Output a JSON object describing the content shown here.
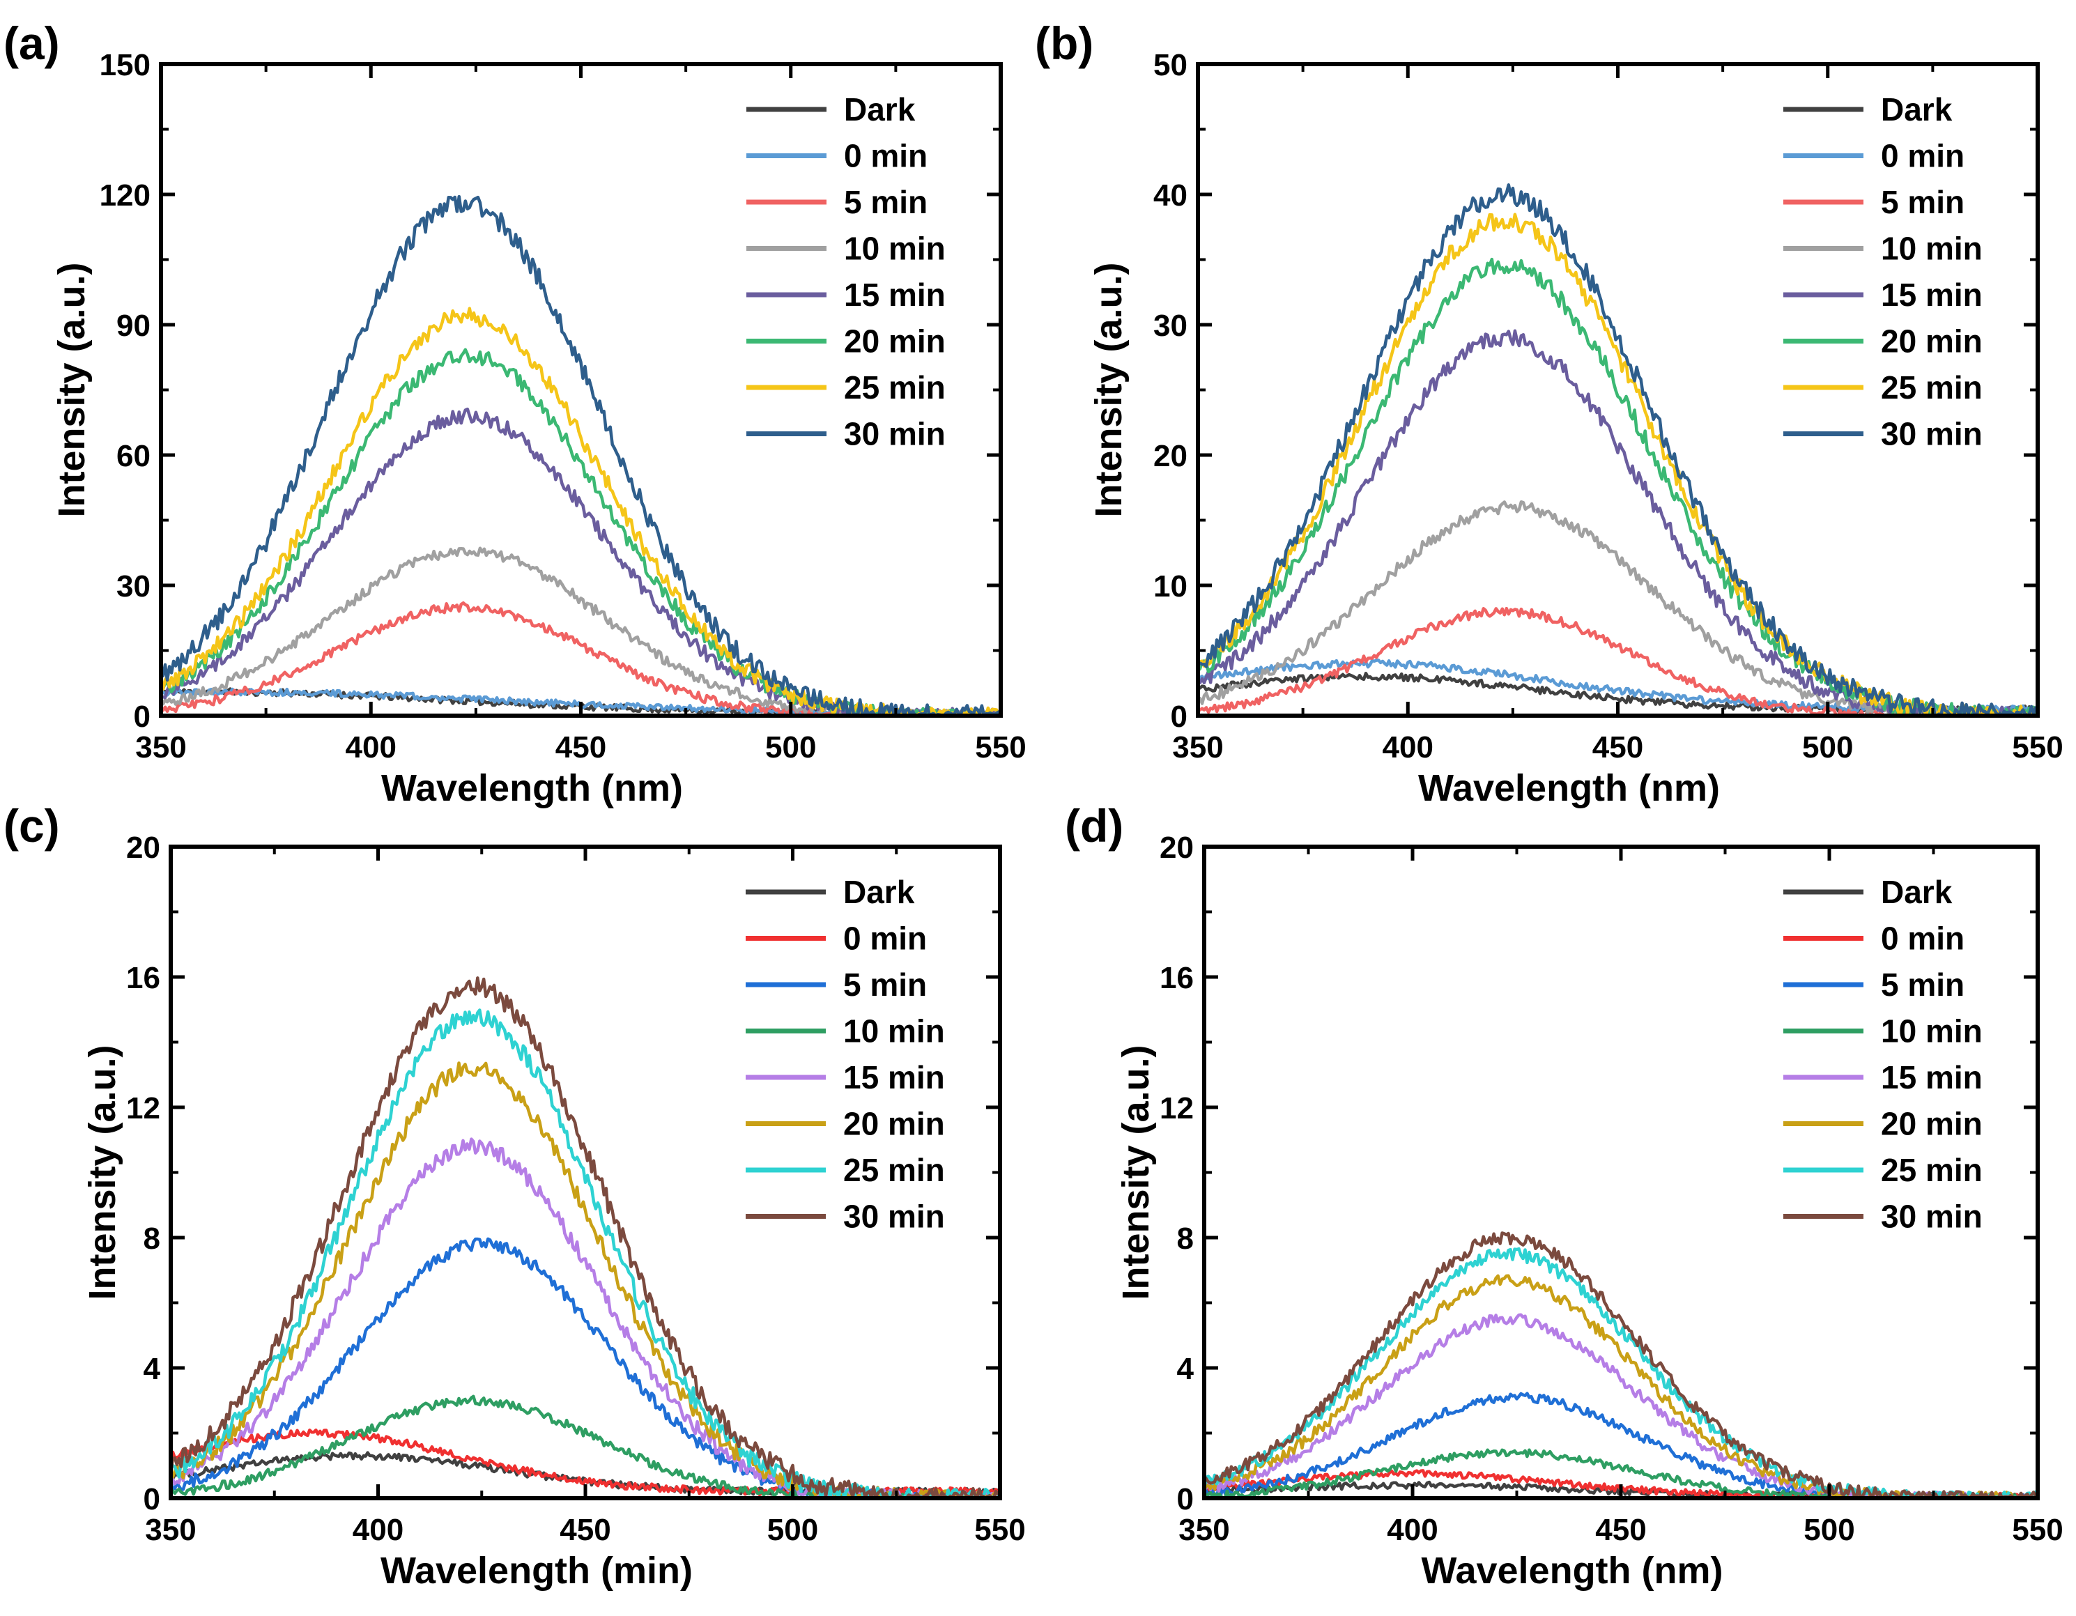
{
  "figure": {
    "description_title": ""
  },
  "chart_data": [
    {
      "panel": "(a)",
      "type": "line",
      "xlabel": "Wavelength (nm)",
      "ylabel": "Intensity (a.u.)",
      "xlim": [
        350,
        550
      ],
      "ylim": [
        0,
        150
      ],
      "xticks": [
        350,
        400,
        450,
        500,
        550
      ],
      "yticks": [
        0,
        30,
        60,
        90,
        120,
        150
      ],
      "legend": "top-right",
      "series": [
        {
          "name": "Dark",
          "color": "#404040",
          "peak_x": 360,
          "peak": 5,
          "width": 60,
          "baseline": 0.5
        },
        {
          "name": "0 min",
          "color": "#5b9bd5",
          "peak_x": 365,
          "peak": 5,
          "width": 65,
          "baseline": 0.5
        },
        {
          "name": "5 min",
          "color": "#f06262",
          "peak_x": 422,
          "peak": 25,
          "width": 30,
          "baseline": 0
        },
        {
          "name": "10 min",
          "color": "#a0a0a0",
          "peak_x": 423,
          "peak": 38,
          "width": 32,
          "baseline": 0
        },
        {
          "name": "15 min",
          "color": "#6a5d9e",
          "peak_x": 423,
          "peak": 69,
          "width": 32,
          "baseline": 0
        },
        {
          "name": "20 min",
          "color": "#3bb873",
          "peak_x": 423,
          "peak": 83,
          "width": 32,
          "baseline": 0
        },
        {
          "name": "25 min",
          "color": "#f5c518",
          "peak_x": 423,
          "peak": 92,
          "width": 32,
          "baseline": 0
        },
        {
          "name": "30 min",
          "color": "#2e5e8c",
          "peak_x": 422,
          "peak": 118,
          "width": 32,
          "baseline": 0
        }
      ]
    },
    {
      "panel": "(b)",
      "type": "line",
      "xlabel": "Wavelength (nm)",
      "ylabel": "Intensity (a.u.)",
      "xlim": [
        350,
        550
      ],
      "ylim": [
        0,
        50
      ],
      "xticks": [
        350,
        400,
        450,
        500,
        550
      ],
      "yticks": [
        0,
        10,
        20,
        30,
        40,
        50
      ],
      "legend": "top-right",
      "series": [
        {
          "name": "Dark",
          "color": "#404040",
          "peak_x": 390,
          "peak": 2.5,
          "width": 40,
          "baseline": 0.5
        },
        {
          "name": "0 min",
          "color": "#5b9bd5",
          "peak_x": 390,
          "peak": 3.5,
          "width": 45,
          "baseline": 0.5
        },
        {
          "name": "5 min",
          "color": "#f06262",
          "peak_x": 423,
          "peak": 8,
          "width": 30,
          "baseline": 0
        },
        {
          "name": "10 min",
          "color": "#a0a0a0",
          "peak_x": 425,
          "peak": 16,
          "width": 33,
          "baseline": 0
        },
        {
          "name": "15 min",
          "color": "#6a5d9e",
          "peak_x": 423,
          "peak": 29,
          "width": 33,
          "baseline": 0
        },
        {
          "name": "20 min",
          "color": "#3bb873",
          "peak_x": 423,
          "peak": 34.5,
          "width": 34,
          "baseline": 0
        },
        {
          "name": "25 min",
          "color": "#f5c518",
          "peak_x": 423,
          "peak": 38,
          "width": 34,
          "baseline": 0
        },
        {
          "name": "30 min",
          "color": "#2e5e8c",
          "peak_x": 423,
          "peak": 40,
          "width": 34,
          "baseline": 0
        }
      ]
    },
    {
      "panel": "(c)",
      "type": "line",
      "xlabel": "Wavelength (min)",
      "ylabel": "Intensity (a.u.)",
      "xlim": [
        350,
        550
      ],
      "ylim": [
        0,
        20
      ],
      "xticks": [
        350,
        400,
        450,
        500,
        550
      ],
      "yticks": [
        0,
        4,
        8,
        12,
        16,
        20
      ],
      "legend": "top-right",
      "series": [
        {
          "name": "Dark",
          "color": "#404040",
          "peak_x": 395,
          "peak": 1.1,
          "width": 35,
          "baseline": 0.2
        },
        {
          "name": "0 min",
          "color": "#f03030",
          "peak_x": 385,
          "peak": 1.8,
          "width": 35,
          "baseline": 0.2
        },
        {
          "name": "5 min",
          "color": "#1f6fd6",
          "peak_x": 425,
          "peak": 7.8,
          "width": 30,
          "baseline": 0
        },
        {
          "name": "10 min",
          "color": "#2e9e62",
          "peak_x": 423,
          "peak": 3.0,
          "width": 30,
          "baseline": 0
        },
        {
          "name": "15 min",
          "color": "#b57ee6",
          "peak_x": 423,
          "peak": 10.8,
          "width": 30,
          "baseline": 0
        },
        {
          "name": "20 min",
          "color": "#c9a016",
          "peak_x": 423,
          "peak": 13.2,
          "width": 30,
          "baseline": 0
        },
        {
          "name": "25 min",
          "color": "#2ed2d2",
          "peak_x": 423,
          "peak": 14.8,
          "width": 30,
          "baseline": 0
        },
        {
          "name": "30 min",
          "color": "#7b4a3e",
          "peak_x": 423,
          "peak": 15.7,
          "width": 31,
          "baseline": 0
        }
      ]
    },
    {
      "panel": "(d)",
      "type": "line",
      "xlabel": "Wavelength (nm)",
      "ylabel": "Intensity (a.u.)",
      "xlim": [
        350,
        550
      ],
      "ylim": [
        0,
        20
      ],
      "xticks": [
        350,
        400,
        450,
        500,
        550
      ],
      "yticks": [
        0,
        4,
        8,
        12,
        16,
        20
      ],
      "legend": "top-right",
      "series": [
        {
          "name": "Dark",
          "color": "#404040",
          "peak_x": 400,
          "peak": 0.35,
          "width": 40,
          "baseline": 0.05
        },
        {
          "name": "0 min",
          "color": "#f03030",
          "peak_x": 400,
          "peak": 0.7,
          "width": 35,
          "baseline": 0.05
        },
        {
          "name": "5 min",
          "color": "#1f6fd6",
          "peak_x": 425,
          "peak": 3.1,
          "width": 30,
          "baseline": 0
        },
        {
          "name": "10 min",
          "color": "#2e9e62",
          "peak_x": 423,
          "peak": 1.4,
          "width": 30,
          "baseline": 0
        },
        {
          "name": "15 min",
          "color": "#b57ee6",
          "peak_x": 423,
          "peak": 5.5,
          "width": 30,
          "baseline": 0
        },
        {
          "name": "20 min",
          "color": "#c9a016",
          "peak_x": 423,
          "peak": 6.7,
          "width": 30,
          "baseline": 0
        },
        {
          "name": "25 min",
          "color": "#2ed2d2",
          "peak_x": 423,
          "peak": 7.5,
          "width": 31,
          "baseline": 0
        },
        {
          "name": "30 min",
          "color": "#7b4a3e",
          "peak_x": 423,
          "peak": 8.0,
          "width": 31,
          "baseline": 0
        }
      ]
    }
  ]
}
